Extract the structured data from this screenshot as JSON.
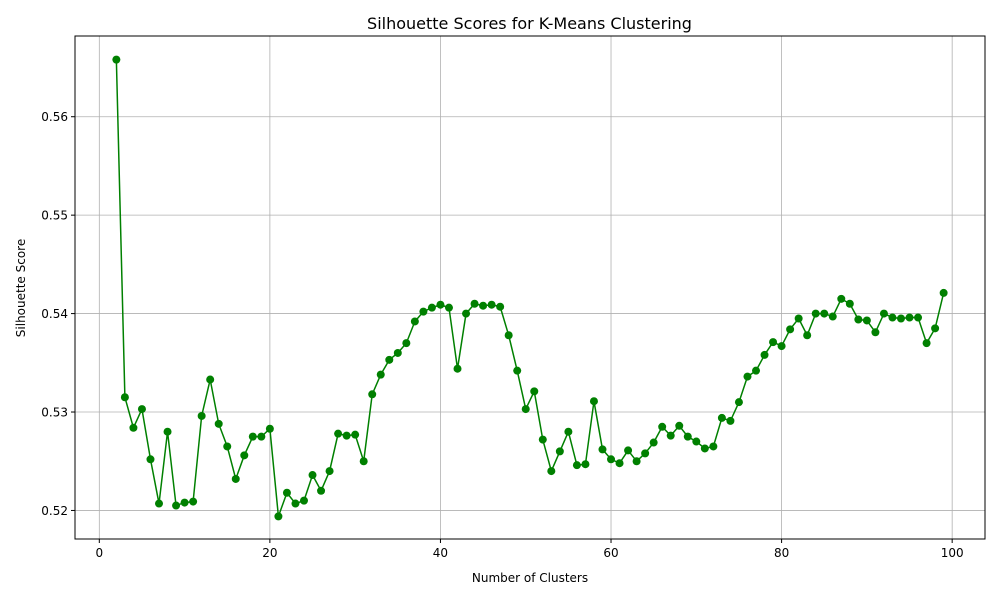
{
  "chart_data": {
    "type": "line",
    "title": "Silhouette Scores for K-Means Clustering",
    "xlabel": "Number of Clusters",
    "ylabel": "Silhouette Score",
    "xlim": [
      -2.85,
      103.85
    ],
    "ylim": [
      0.5171,
      0.5682
    ],
    "x_ticks": [
      0,
      20,
      40,
      60,
      80,
      100
    ],
    "y_ticks": [
      0.52,
      0.53,
      0.54,
      0.55,
      0.56
    ],
    "x_tick_labels": [
      "0",
      "20",
      "40",
      "60",
      "80",
      "100"
    ],
    "y_tick_labels": [
      "0.52",
      "0.53",
      "0.54",
      "0.55",
      "0.56"
    ],
    "grid": true,
    "marker": "o",
    "colors": {
      "series": "#008000"
    },
    "series": [
      {
        "x": [
          2,
          3,
          4,
          5,
          6,
          7,
          8,
          9,
          10,
          11,
          12,
          13,
          14,
          15,
          16,
          17,
          18,
          19,
          20,
          21,
          22,
          23,
          24,
          25,
          26,
          27,
          28,
          29,
          30,
          31,
          32,
          33,
          34,
          35,
          36,
          37,
          38,
          39,
          40,
          41,
          42,
          43,
          44,
          45,
          46,
          47,
          48,
          49,
          50,
          51,
          52,
          53,
          54,
          55,
          56,
          57,
          58,
          59,
          60,
          61,
          62,
          63,
          64,
          65,
          66,
          67,
          68,
          69,
          70,
          71,
          72,
          73,
          74,
          75,
          76,
          77,
          78,
          79,
          80,
          81,
          82,
          83,
          84,
          85,
          86,
          87,
          88,
          89,
          90,
          91,
          92,
          93,
          94,
          95,
          96,
          97,
          98,
          99
        ],
        "values": [
          0.5658,
          0.5315,
          0.5284,
          0.5303,
          0.5252,
          0.5207,
          0.528,
          0.5205,
          0.5208,
          0.5209,
          0.5296,
          0.5333,
          0.5288,
          0.5265,
          0.5232,
          0.5256,
          0.5275,
          0.5275,
          0.5283,
          0.5194,
          0.5218,
          0.5207,
          0.521,
          0.5236,
          0.522,
          0.524,
          0.5278,
          0.5276,
          0.5277,
          0.525,
          0.5318,
          0.5338,
          0.5353,
          0.536,
          0.537,
          0.5392,
          0.5402,
          0.5406,
          0.5409,
          0.5406,
          0.5344,
          0.54,
          0.541,
          0.5408,
          0.5409,
          0.5407,
          0.5378,
          0.5342,
          0.5303,
          0.5321,
          0.5272,
          0.524,
          0.526,
          0.528,
          0.5246,
          0.5247,
          0.5311,
          0.5262,
          0.5252,
          0.5248,
          0.5261,
          0.525,
          0.5258,
          0.5269,
          0.5285,
          0.5276,
          0.5286,
          0.5275,
          0.527,
          0.5263,
          0.5265,
          0.5294,
          0.5291,
          0.531,
          0.5336,
          0.5342,
          0.5358,
          0.5371,
          0.5367,
          0.5384,
          0.5395,
          0.5378,
          0.54,
          0.54,
          0.5397,
          0.5415,
          0.541,
          0.5394,
          0.5393,
          0.5381,
          0.54,
          0.5396,
          0.5395,
          0.5396,
          0.5396,
          0.537,
          0.5385,
          0.5421
        ]
      }
    ]
  }
}
